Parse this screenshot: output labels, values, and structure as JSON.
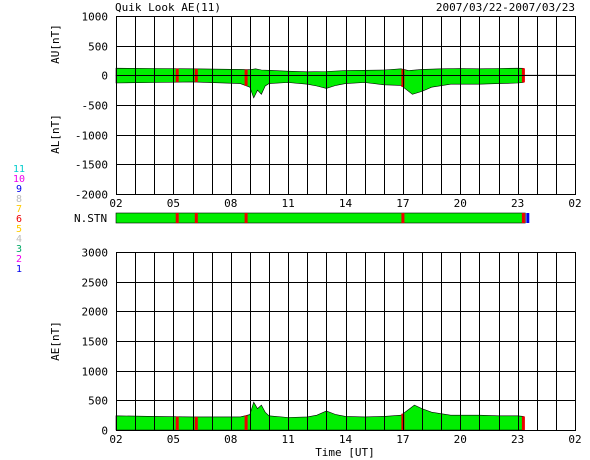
{
  "header": {
    "title": "Quik Look AE(11)",
    "date_range": "2007/03/22-2007/03/23"
  },
  "colors": {
    "fill": "#00ee00",
    "station_drop": "#ee0000",
    "stn_palette": [
      "#0000ee",
      "#ee00ee",
      "#00aa66",
      "#bbbbbb",
      "#ffcc00",
      "#ee0000",
      "#ffcc00",
      "#bbbbbb",
      "#0000ee",
      "#ee00ee",
      "#00cccc"
    ]
  },
  "legend": {
    "levels": [
      "11",
      "10",
      "9",
      "8",
      "7",
      "6",
      "5",
      "4",
      "3",
      "2",
      "1"
    ]
  },
  "chart_data": [
    {
      "type": "area",
      "name": "au_al",
      "ylabel_top": "AU[nT]",
      "ylabel_bottom": "AL[nT]",
      "ylim": [
        -2000,
        1000
      ],
      "yticks": [
        1000,
        500,
        0,
        -500,
        -1000,
        -1500,
        -2000
      ],
      "xlim": [
        2,
        26
      ],
      "xticks": [
        "02",
        "05",
        "08",
        "11",
        "14",
        "17",
        "20",
        "23",
        "02"
      ],
      "grid": true,
      "au": {
        "x": [
          2.0,
          4.0,
          6.0,
          8.5,
          9.0,
          9.3,
          9.6,
          10.0,
          11.0,
          12.0,
          13.0,
          14.0,
          15.0,
          16.0,
          16.9,
          17.3,
          18.0,
          19.0,
          20.0,
          21.0,
          22.0,
          23.0,
          23.3
        ],
        "y": [
          120,
          115,
          110,
          100,
          95,
          110,
          90,
          85,
          70,
          60,
          65,
          80,
          85,
          90,
          110,
          80,
          100,
          110,
          115,
          110,
          115,
          120,
          118
        ]
      },
      "al": {
        "x": [
          2.0,
          4.0,
          6.0,
          8.5,
          9.0,
          9.2,
          9.4,
          9.6,
          9.8,
          10.0,
          11.0,
          12.0,
          12.5,
          13.0,
          13.5,
          14.0,
          15.0,
          16.0,
          16.9,
          17.5,
          18.0,
          18.5,
          19.5,
          21.0,
          22.0,
          23.0,
          23.3
        ],
        "y": [
          -130,
          -120,
          -110,
          -140,
          -200,
          -380,
          -250,
          -320,
          -180,
          -140,
          -120,
          -150,
          -180,
          -220,
          -170,
          -140,
          -120,
          -160,
          -170,
          -320,
          -270,
          -200,
          -150,
          -150,
          -140,
          -130,
          -120
        ]
      }
    },
    {
      "type": "bar",
      "name": "n_stn",
      "label": "N.STN",
      "xlim": [
        2,
        26
      ],
      "stations": 11,
      "drops_at": [
        5.2,
        6.2,
        8.8,
        17.0,
        23.3
      ]
    },
    {
      "type": "area",
      "name": "ae",
      "ylabel": "AE[nT]",
      "xlabel": "Time [UT]",
      "ylim": [
        0,
        3000
      ],
      "yticks": [
        3000,
        2500,
        2000,
        1500,
        1000,
        500,
        0
      ],
      "xlim": [
        2,
        26
      ],
      "xticks": [
        "02",
        "05",
        "08",
        "11",
        "14",
        "17",
        "20",
        "23",
        "02"
      ],
      "grid": true,
      "ae": {
        "x": [
          2.0,
          4.0,
          6.0,
          8.5,
          9.0,
          9.2,
          9.4,
          9.6,
          9.8,
          10.0,
          11.0,
          12.0,
          12.5,
          13.0,
          13.5,
          14.0,
          15.0,
          16.0,
          16.9,
          17.6,
          18.0,
          18.5,
          19.5,
          21.0,
          22.0,
          23.0,
          23.3
        ],
        "y": [
          240,
          230,
          220,
          220,
          260,
          470,
          360,
          420,
          300,
          240,
          210,
          220,
          250,
          320,
          260,
          230,
          220,
          230,
          250,
          420,
          360,
          300,
          250,
          250,
          240,
          240,
          230
        ]
      }
    }
  ]
}
